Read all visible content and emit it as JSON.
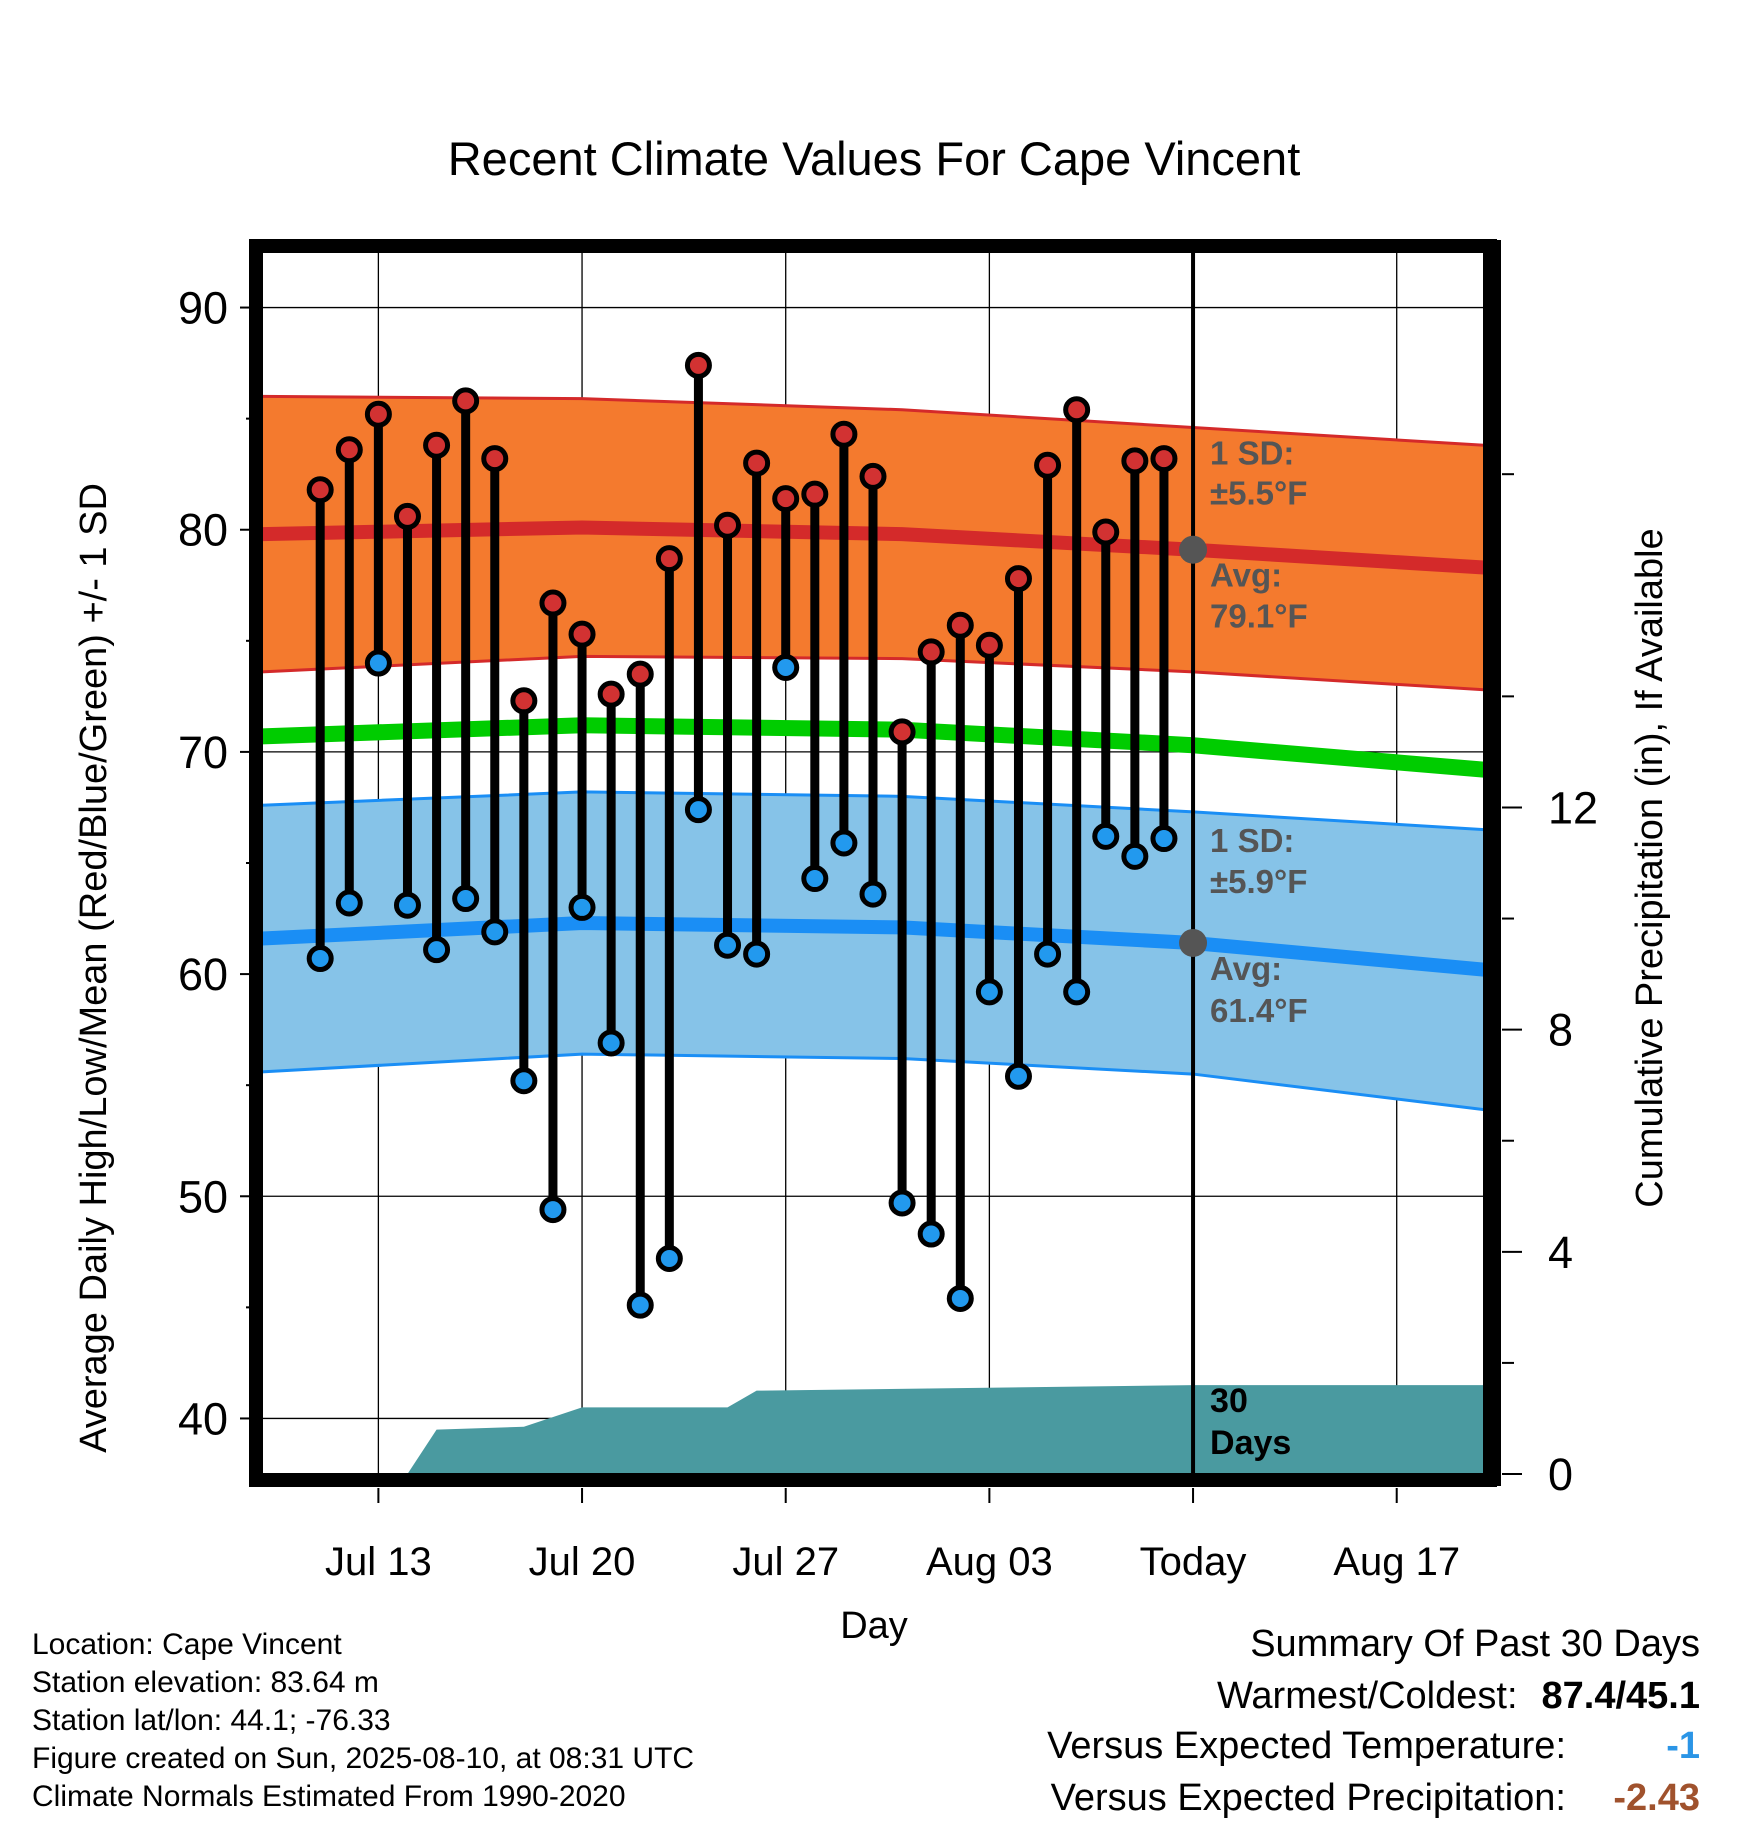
{
  "chart_data": {
    "type": "line",
    "title": "Recent Climate Values For Cape Vincent",
    "xlabel": "Day",
    "ylabel": "Average Daily High/Low/Mean (Red/Blue/Green) +/- 1 SD",
    "y2label": "Cumulative Precipitation (in), If Available",
    "ylim": [
      37.5,
      92.5
    ],
    "y2lim": [
      0,
      22
    ],
    "xlim": [
      "2025-07-09",
      "2025-08-20"
    ],
    "yticks": [
      40,
      50,
      60,
      70,
      80,
      90
    ],
    "y2ticks": [
      0,
      4,
      8,
      12
    ],
    "xticks": [
      {
        "date": "2025-07-13",
        "label": "Jul 13"
      },
      {
        "date": "2025-07-20",
        "label": "Jul 20"
      },
      {
        "date": "2025-07-27",
        "label": "Jul 27"
      },
      {
        "date": "2025-08-03",
        "label": "Aug 03"
      },
      {
        "date": "2025-08-10",
        "label": "Today"
      },
      {
        "date": "2025-08-17",
        "label": "Aug 17"
      }
    ],
    "grid": true,
    "today": "2025-08-10",
    "days": [
      "2025-07-11",
      "2025-07-12",
      "2025-07-13",
      "2025-07-14",
      "2025-07-15",
      "2025-07-16",
      "2025-07-17",
      "2025-07-18",
      "2025-07-19",
      "2025-07-20",
      "2025-07-21",
      "2025-07-22",
      "2025-07-23",
      "2025-07-24",
      "2025-07-25",
      "2025-07-26",
      "2025-07-27",
      "2025-07-28",
      "2025-07-29",
      "2025-07-30",
      "2025-07-31",
      "2025-08-01",
      "2025-08-02",
      "2025-08-03",
      "2025-08-04",
      "2025-08-05",
      "2025-08-06",
      "2025-08-07",
      "2025-08-08",
      "2025-08-09"
    ],
    "series": [
      {
        "name": "High",
        "color": "#d23232",
        "values": [
          81.8,
          83.6,
          85.2,
          80.6,
          83.8,
          85.8,
          83.2,
          72.3,
          76.7,
          75.3,
          72.6,
          73.5,
          78.7,
          87.4,
          80.2,
          83.0,
          81.4,
          81.6,
          84.3,
          82.4,
          70.9,
          74.5,
          75.7,
          74.8,
          77.8,
          82.9,
          85.4,
          79.9,
          83.1,
          83.2
        ]
      },
      {
        "name": "Low",
        "color": "#2299ee",
        "values": [
          60.7,
          63.2,
          74.0,
          63.1,
          61.1,
          63.4,
          61.9,
          55.2,
          49.4,
          63.0,
          56.9,
          45.1,
          47.2,
          67.4,
          61.3,
          60.9,
          73.8,
          64.3,
          65.9,
          63.6,
          49.7,
          48.3,
          45.4,
          59.2,
          55.4,
          60.9,
          59.2,
          66.2,
          65.3,
          66.1
        ]
      }
    ],
    "normals": {
      "dates": [
        "2025-07-09",
        "2025-07-20",
        "2025-07-31",
        "2025-08-10",
        "2025-08-20"
      ],
      "high_mean": [
        79.8,
        80.1,
        79.8,
        79.1,
        78.3
      ],
      "high_sd": [
        6.2,
        5.8,
        5.6,
        5.5,
        5.5
      ],
      "low_mean": [
        61.6,
        62.3,
        62.1,
        61.4,
        60.2
      ],
      "low_sd": [
        6.0,
        5.9,
        5.9,
        5.9,
        6.3
      ],
      "mean": [
        70.7,
        71.2,
        71.0,
        70.3,
        69.2
      ]
    },
    "precip_cumulative": [
      {
        "date": "2025-07-09",
        "value": 0
      },
      {
        "date": "2025-07-12",
        "value": 0
      },
      {
        "date": "2025-07-14",
        "value": 0
      },
      {
        "date": "2025-07-15",
        "value": 0.8
      },
      {
        "date": "2025-07-18",
        "value": 0.85
      },
      {
        "date": "2025-07-20",
        "value": 1.2
      },
      {
        "date": "2025-07-25",
        "value": 1.2
      },
      {
        "date": "2025-07-26",
        "value": 1.5
      },
      {
        "date": "2025-08-10",
        "value": 1.6
      },
      {
        "date": "2025-08-20",
        "value": 1.6
      }
    ],
    "annotations": {
      "high_sd_label": "1 SD:",
      "high_sd_value": "±5.5°F",
      "high_avg_label": "Avg:",
      "high_avg_value": "79.1°F",
      "low_sd_label": "1 SD:",
      "low_sd_value": "±5.9°F",
      "low_avg_label": "Avg:",
      "low_avg_value": "61.4°F",
      "period_number": "30",
      "period_unit": "Days"
    },
    "colors": {
      "high_band": "#f47a2e",
      "high_line": "#d42a2a",
      "low_band": "#86c3e8",
      "low_line": "#1a8ef5",
      "mean_line": "#00cc00",
      "precip": "#4a9aa0",
      "annotation": "#555555"
    }
  },
  "station": {
    "location": "Location: Cape Vincent",
    "elevation": "Station elevation: 83.64 m",
    "latlon": "Station lat/lon: 44.1; -76.33",
    "created": "Figure created on Sun, 2025-08-10, at 08:31 UTC",
    "normals": "Climate Normals Estimated From 1990-2020"
  },
  "summary": {
    "title": "Summary Of Past 30 Days",
    "warmest_label": "Warmest/Coldest:",
    "warmest_value": "87.4/45.1",
    "temp_label": "Versus Expected Temperature:",
    "temp_value": "-1",
    "temp_color": "#2b95e6",
    "precip_label": "Versus Expected Precipitation:",
    "precip_value": "-2.43",
    "precip_color": "#a0522d"
  }
}
